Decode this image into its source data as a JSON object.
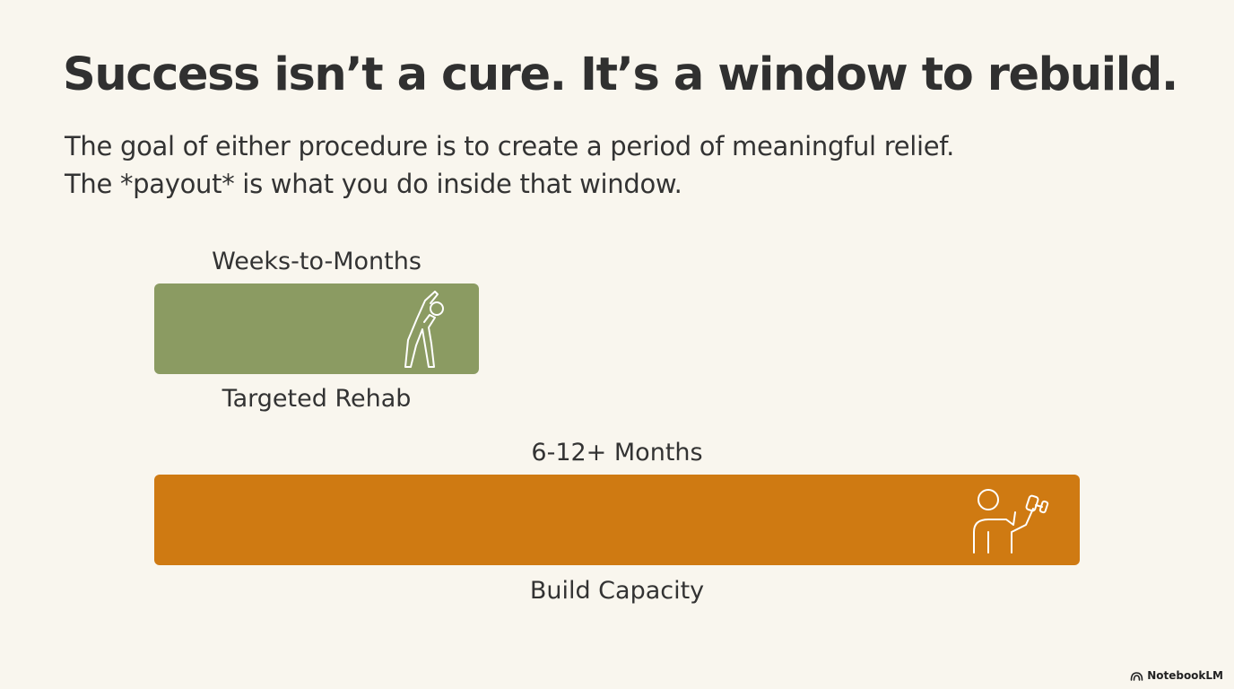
{
  "title": "Success isn’t a cure. It’s a window to rebuild.",
  "subtitle": {
    "line1": "The goal of either procedure is to create a period of meaningful relief.",
    "line2": "The *payout* is what you do inside that window."
  },
  "phases": [
    {
      "duration_label": "Weeks-to-Months",
      "name": "Targeted Rehab",
      "color": "#8b9b62",
      "icon": "stretching-person-icon"
    },
    {
      "duration_label": "6-12+ Months",
      "name": "Build Capacity",
      "color": "#cf7a12",
      "icon": "person-lifting-dumbbell-icon"
    }
  ],
  "brand": "NotebookLM"
}
